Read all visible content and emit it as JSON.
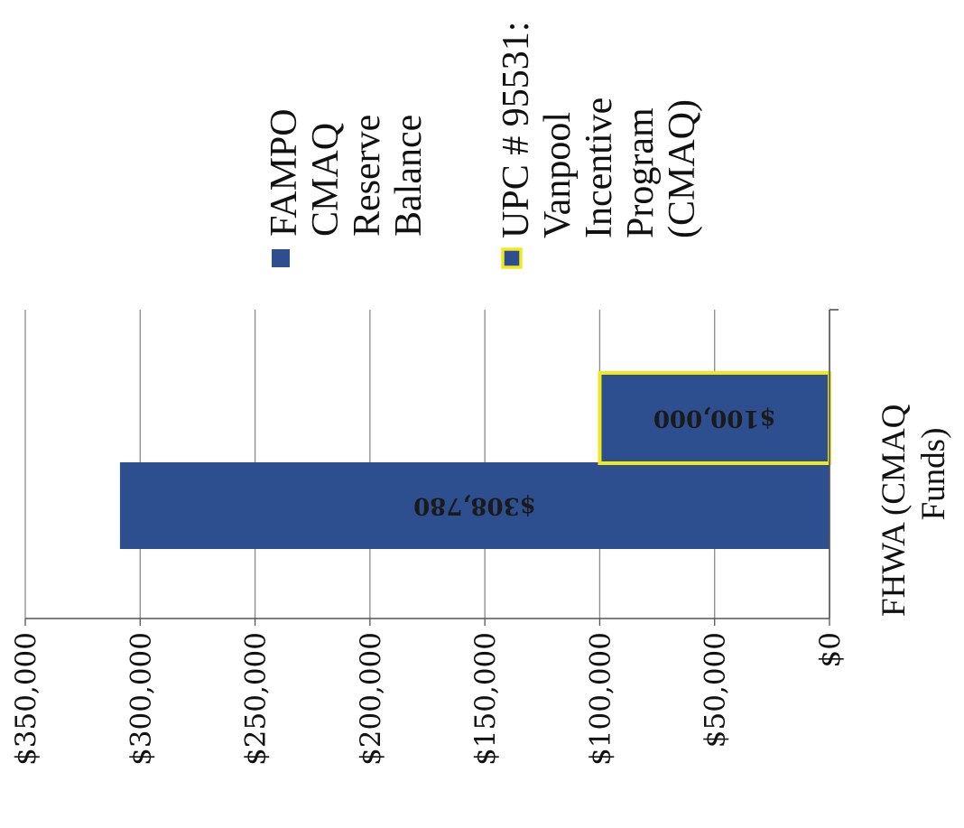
{
  "chart_data": {
    "type": "bar",
    "orientation": "horizontal",
    "stacked": false,
    "categories": [
      "FHWA (CMAQ Funds)"
    ],
    "category_label_lines": [
      "FHWA (CMAQ",
      "Funds)"
    ],
    "series": [
      {
        "name": "FAMPO CMAQ Reserve Balance",
        "name_lines": [
          "FAMPO",
          "CMAQ",
          "Reserve",
          "Balance"
        ],
        "values": [
          308780
        ],
        "data_labels": [
          "$308,780"
        ],
        "color": "#2E4F8F",
        "border": ""
      },
      {
        "name": "UPC # 95531: Vanpool Incentive Program (CMAQ)",
        "name_lines": [
          "UPC # 95531:",
          "Vanpool",
          "Incentive",
          "Program",
          "(CMAQ)"
        ],
        "values": [
          100000
        ],
        "data_labels": [
          "$100,000"
        ],
        "color": "#2E4F8F",
        "border": "#F2E81E"
      }
    ],
    "value_axis": {
      "min": 0,
      "max": 350000,
      "step": 50000,
      "tick_labels": [
        "$0",
        "$50,000",
        "$100,000",
        "$150,000",
        "$200,000",
        "$250,000",
        "$300,000",
        "$350,000"
      ]
    },
    "title": "",
    "xlabel": "",
    "ylabel": "",
    "grid": true,
    "legend": "right",
    "rotation": "image rotated 90 degrees counterclockwise"
  }
}
